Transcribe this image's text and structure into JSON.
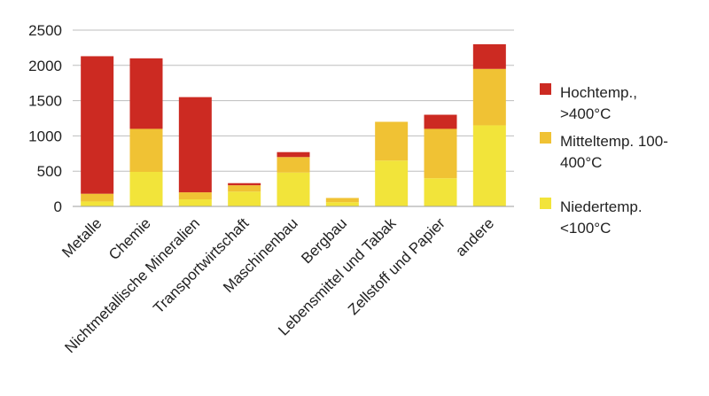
{
  "chart_data": {
    "type": "bar",
    "stacked": true,
    "categories": [
      "Metalle",
      "Chemie",
      "Nichtmetallische Mineralien",
      "Transportwirtschaft",
      "Maschinenbau",
      "Bergbau",
      "Lebensmittel und Tabak",
      "Zellstoff und Papier",
      "andere"
    ],
    "series": [
      {
        "name": "Niedertemp. <100°C",
        "color": "#f2e43a",
        "values": [
          70,
          490,
          100,
          210,
          480,
          60,
          650,
          400,
          1150
        ]
      },
      {
        "name": "Mitteltemp. 100-400°C",
        "color": "#f0c234",
        "values": [
          110,
          610,
          100,
          90,
          220,
          60,
          550,
          700,
          800
        ]
      },
      {
        "name": "Hochtemp., >400°C",
        "color": "#cc2a22",
        "values": [
          1950,
          1000,
          1350,
          30,
          70,
          0,
          0,
          200,
          350
        ]
      }
    ],
    "legend_order": [
      2,
      1,
      0
    ],
    "legend_lines": [
      [
        "Hochtemp.,",
        ">400°C"
      ],
      [
        "Mitteltemp. 100-",
        "400°C"
      ],
      [
        "Niedertemp.",
        "<100°C"
      ]
    ],
    "yticks": [
      "0",
      "500",
      "1000",
      "1500",
      "2000",
      "2500"
    ],
    "ylim": [
      0,
      2500
    ],
    "grid": "horizontal",
    "legend": "right",
    "xlabel": "",
    "ylabel": "",
    "title": ""
  }
}
